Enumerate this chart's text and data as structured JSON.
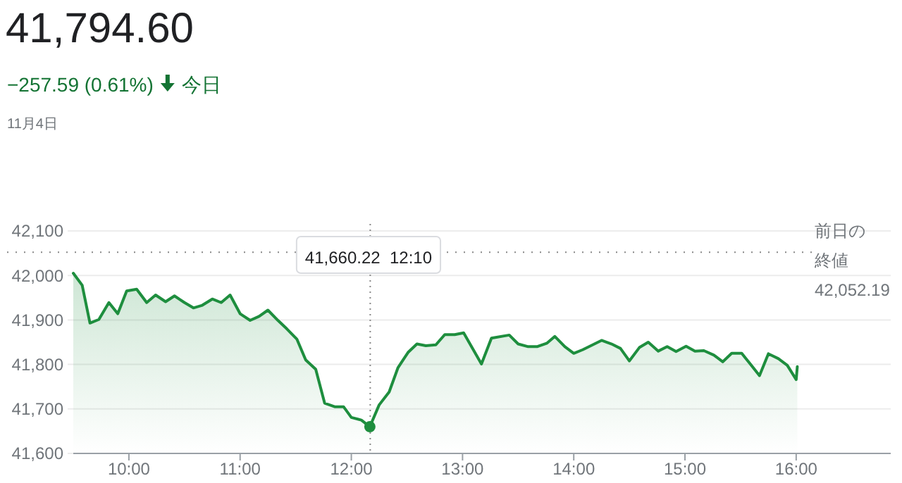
{
  "chart_data": {
    "type": "area",
    "title": "41,794.60",
    "subtitle": "−257.59 (0.61%)",
    "annotations": [
      "41,660.22  12:10",
      "今日",
      "11月4日"
    ],
    "x": [
      9.5,
      9.58,
      9.65,
      9.73,
      9.82,
      9.9,
      9.98,
      10.07,
      10.16,
      10.24,
      10.33,
      10.41,
      10.5,
      10.58,
      10.66,
      10.75,
      10.83,
      10.91,
      11.0,
      11.09,
      11.17,
      11.25,
      11.34,
      11.42,
      11.51,
      11.59,
      11.68,
      11.76,
      11.85,
      11.93,
      12.0,
      12.09,
      12.1667,
      12.25,
      12.34,
      12.42,
      12.51,
      12.59,
      12.67,
      12.76,
      12.84,
      12.93,
      13.01,
      13.17,
      13.26,
      13.42,
      13.5,
      13.59,
      13.67,
      13.76,
      13.83,
      13.92,
      14.0,
      14.08,
      14.17,
      14.25,
      14.34,
      14.42,
      14.5,
      14.59,
      14.67,
      14.76,
      14.84,
      14.92,
      15.01,
      15.09,
      15.17,
      15.26,
      15.34,
      15.42,
      15.51,
      15.59,
      15.67,
      15.75,
      15.84,
      15.92,
      16.0,
      16.01
    ],
    "series": [
      {
        "color": "#1e8e3e",
        "values": [
          42005,
          41978,
          41893,
          41901,
          41939,
          41914,
          41965,
          41969,
          41939,
          41956,
          41941,
          41954,
          41939,
          41927,
          41933,
          41947,
          41939,
          41956,
          41914,
          41899,
          41908,
          41922,
          41899,
          41880,
          41857,
          41810,
          41789,
          41713,
          41705,
          41705,
          41681,
          41675,
          41660,
          41709,
          41738,
          41793,
          41827,
          41846,
          41842,
          41844,
          41867,
          41867,
          41871,
          41801,
          41859,
          41866,
          41846,
          41840,
          41840,
          41848,
          41863,
          41840,
          41825,
          41833,
          41844,
          41854,
          41846,
          41836,
          41808,
          41838,
          41850,
          41830,
          41840,
          41829,
          41841,
          41830,
          41831,
          41821,
          41806,
          41825,
          41825,
          41800,
          41775,
          41824,
          41813,
          41798,
          41766,
          41795
        ]
      }
    ],
    "xlim": [
      9.5,
      16.85
    ],
    "ylim": [
      41600,
      42100
    ],
    "xticks": [
      {
        "value": 10,
        "label": "10:00"
      },
      {
        "value": 11,
        "label": "11:00"
      },
      {
        "value": 12,
        "label": "12:00"
      },
      {
        "value": 13,
        "label": "13:00"
      },
      {
        "value": 14,
        "label": "14:00"
      },
      {
        "value": 15,
        "label": "15:00"
      },
      {
        "value": 16,
        "label": "16:00"
      }
    ],
    "yticks": [
      {
        "value": 41600,
        "label": "41,600"
      },
      {
        "value": 41700,
        "label": "41,700"
      },
      {
        "value": 41800,
        "label": "41,800"
      },
      {
        "value": 41900,
        "label": "41,900"
      },
      {
        "value": 42000,
        "label": "42,000"
      },
      {
        "value": 42100,
        "label": "42,100"
      }
    ],
    "grid": "y",
    "ref_lines": [
      {
        "axis": "x",
        "value": 12.17,
        "line_style": "dotted"
      },
      {
        "axis": "y",
        "value": 42052.19,
        "label": "前日の終値42,052.19",
        "line_style": "dotted"
      }
    ]
  }
}
